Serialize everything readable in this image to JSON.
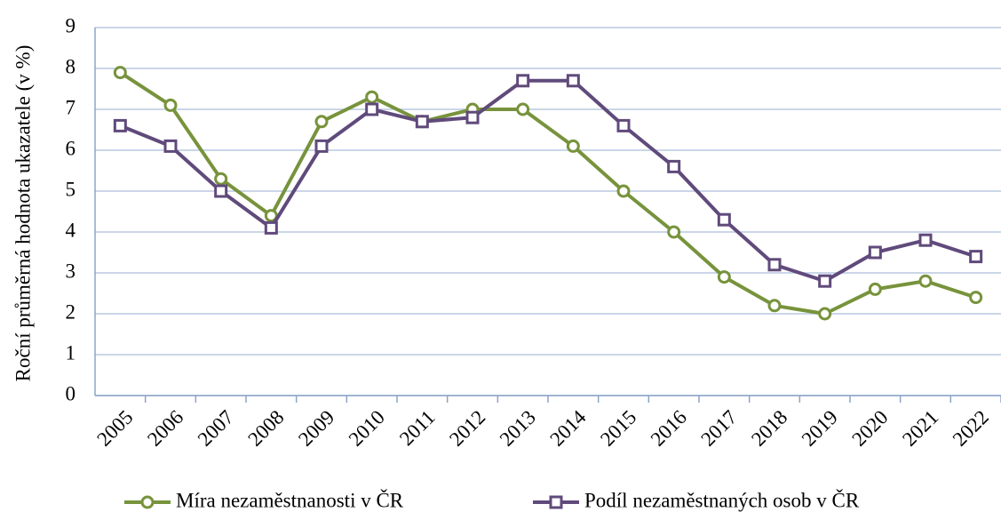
{
  "chart_data": {
    "type": "line",
    "y_label": "Roční průměrná hodnota ukazatele (v %)",
    "categories": [
      "2005",
      "2006",
      "2007",
      "2008",
      "2009",
      "2010",
      "2011",
      "2012",
      "2013",
      "2014",
      "2015",
      "2016",
      "2017",
      "2018",
      "2019",
      "2020",
      "2021",
      "2022"
    ],
    "series": [
      {
        "name": "Míra nezaměstnanosti v ČR",
        "color": "#77933c",
        "marker": "circle",
        "values": [
          7.9,
          7.1,
          5.3,
          4.4,
          6.7,
          7.3,
          6.7,
          7.0,
          7.0,
          6.1,
          5.0,
          4.0,
          2.9,
          2.2,
          2.0,
          2.6,
          2.8,
          2.4
        ]
      },
      {
        "name": "Podíl nezaměstnaných osob v ČR",
        "color": "#604a7b",
        "marker": "square",
        "values": [
          6.6,
          6.1,
          5.0,
          4.1,
          6.1,
          7.0,
          6.7,
          6.8,
          7.7,
          7.7,
          6.6,
          5.6,
          4.3,
          3.2,
          2.8,
          3.5,
          3.8,
          3.4
        ]
      }
    ],
    "ylim": [
      0,
      9
    ],
    "yticks": [
      0,
      1,
      2,
      3,
      4,
      5,
      6,
      7,
      8,
      9
    ],
    "grid": true,
    "legend": "bottom"
  }
}
